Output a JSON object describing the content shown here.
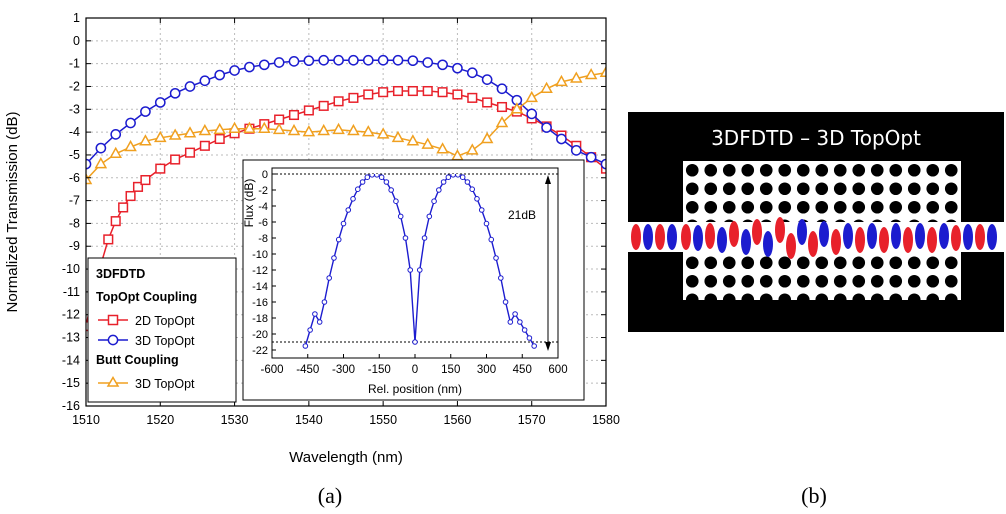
{
  "panel_a_caption": "(a)",
  "panel_b_caption": "(b)",
  "panel_b_title": "3DFDTD – 3D TopOpt",
  "chart_data": [
    {
      "type": "line",
      "xlabel": "Wavelength (nm)",
      "ylabel": "Normalized Transmission (dB)",
      "xlim": [
        1510,
        1580
      ],
      "ylim": [
        -16,
        1
      ],
      "xticks": [
        1510,
        1520,
        1530,
        1540,
        1550,
        1560,
        1570,
        1580
      ],
      "yticks": [
        1,
        0,
        -1,
        -2,
        -3,
        -4,
        -5,
        -6,
        -7,
        -8,
        -9,
        -10,
        -11,
        -12,
        -13,
        -14,
        -15,
        -16
      ],
      "grid": true,
      "legend": {
        "placement": "bottom-left",
        "group1_title": "3DFDTD",
        "group2_title": "TopOpt Coupling",
        "group3_title": "Butt Coupling"
      },
      "series": [
        {
          "name": "2D TopOpt",
          "marker": "square",
          "color": "#e8212b",
          "x": [
            1510,
            1511,
            1512,
            1513,
            1514,
            1515,
            1516,
            1517,
            1518,
            1520,
            1522,
            1524,
            1526,
            1528,
            1530,
            1532,
            1534,
            1536,
            1538,
            1540,
            1542,
            1544,
            1546,
            1548,
            1550,
            1552,
            1554,
            1556,
            1558,
            1560,
            1562,
            1564,
            1566,
            1568,
            1570,
            1572,
            1574,
            1576,
            1578,
            1580
          ],
          "y": [
            -12.5,
            -11.0,
            -9.8,
            -8.7,
            -7.9,
            -7.3,
            -6.8,
            -6.4,
            -6.1,
            -5.6,
            -5.2,
            -4.9,
            -4.6,
            -4.3,
            -4.05,
            -3.85,
            -3.65,
            -3.45,
            -3.25,
            -3.05,
            -2.85,
            -2.65,
            -2.5,
            -2.35,
            -2.25,
            -2.2,
            -2.2,
            -2.2,
            -2.25,
            -2.35,
            -2.5,
            -2.7,
            -2.9,
            -3.1,
            -3.4,
            -3.75,
            -4.15,
            -4.6,
            -5.1,
            -5.6
          ]
        },
        {
          "name": "3D TopOpt",
          "marker": "circle",
          "color": "#1c1ccf",
          "x": [
            1510,
            1512,
            1514,
            1516,
            1518,
            1520,
            1522,
            1524,
            1526,
            1528,
            1530,
            1532,
            1534,
            1536,
            1538,
            1540,
            1542,
            1544,
            1546,
            1548,
            1550,
            1552,
            1554,
            1556,
            1558,
            1560,
            1562,
            1564,
            1566,
            1568,
            1570,
            1572,
            1574,
            1576,
            1578,
            1580
          ],
          "y": [
            -5.4,
            -4.7,
            -4.1,
            -3.6,
            -3.1,
            -2.7,
            -2.3,
            -2.0,
            -1.75,
            -1.5,
            -1.3,
            -1.15,
            -1.05,
            -0.95,
            -0.9,
            -0.87,
            -0.85,
            -0.85,
            -0.85,
            -0.85,
            -0.85,
            -0.85,
            -0.87,
            -0.95,
            -1.05,
            -1.2,
            -1.4,
            -1.7,
            -2.1,
            -2.6,
            -3.2,
            -3.8,
            -4.3,
            -4.8,
            -5.1,
            -5.4
          ]
        },
        {
          "name": "3D TopOpt",
          "marker": "triangle",
          "color": "#f0a020",
          "x": [
            1510,
            1512,
            1514,
            1516,
            1518,
            1520,
            1522,
            1524,
            1526,
            1528,
            1530,
            1532,
            1534,
            1536,
            1538,
            1540,
            1542,
            1544,
            1546,
            1548,
            1550,
            1552,
            1554,
            1556,
            1558,
            1560,
            1562,
            1564,
            1566,
            1568,
            1570,
            1572,
            1574,
            1576,
            1578,
            1580
          ],
          "y": [
            -6.1,
            -5.4,
            -4.95,
            -4.65,
            -4.4,
            -4.25,
            -4.15,
            -4.05,
            -3.95,
            -3.9,
            -3.85,
            -3.85,
            -3.85,
            -3.9,
            -3.95,
            -4.0,
            -3.95,
            -3.9,
            -3.95,
            -4.0,
            -4.1,
            -4.25,
            -4.4,
            -4.55,
            -4.75,
            -5.05,
            -4.8,
            -4.3,
            -3.6,
            -3.0,
            -2.5,
            -2.1,
            -1.8,
            -1.65,
            -1.5,
            -1.4
          ]
        }
      ]
    },
    {
      "type": "line",
      "xlabel": "Rel. position (nm)",
      "ylabel": "Flux (dB)",
      "xlim": [
        -600,
        600
      ],
      "ylim": [
        -22,
        0
      ],
      "xticks": [
        -600,
        -450,
        -300,
        -150,
        0,
        150,
        300,
        450,
        600
      ],
      "yticks": [
        0,
        -2,
        -4,
        -6,
        -8,
        -10,
        -12,
        -14,
        -16,
        -18,
        -20,
        -22
      ],
      "annotation": "21dB",
      "series": [
        {
          "marker": "circle",
          "color": "#1c1ccf",
          "x": [
            -460,
            -440,
            -420,
            -400,
            -380,
            -360,
            -340,
            -320,
            -300,
            -280,
            -260,
            -240,
            -220,
            -200,
            -180,
            -160,
            -140,
            -120,
            -100,
            -80,
            -60,
            -40,
            -20,
            0,
            20,
            40,
            60,
            80,
            100,
            120,
            140,
            160,
            180,
            200,
            220,
            240,
            260,
            280,
            300,
            320,
            340,
            360,
            380,
            400,
            420,
            440,
            460,
            480,
            500
          ],
          "y": [
            -21.5,
            -19.5,
            -17.5,
            -18.5,
            -16.0,
            -13.0,
            -10.5,
            -8.2,
            -6.2,
            -4.5,
            -3.1,
            -1.9,
            -1.0,
            -0.4,
            -0.1,
            -0.1,
            -0.4,
            -1.0,
            -2.0,
            -3.4,
            -5.3,
            -8.0,
            -12.0,
            -21.0,
            -12.0,
            -8.0,
            -5.3,
            -3.4,
            -2.0,
            -1.0,
            -0.4,
            -0.1,
            -0.1,
            -0.4,
            -1.0,
            -1.9,
            -3.1,
            -4.5,
            -6.2,
            -8.2,
            -10.5,
            -13.0,
            -16.0,
            -18.5,
            -17.5,
            -18.5,
            -19.5,
            -20.5,
            -21.5
          ]
        }
      ]
    }
  ]
}
